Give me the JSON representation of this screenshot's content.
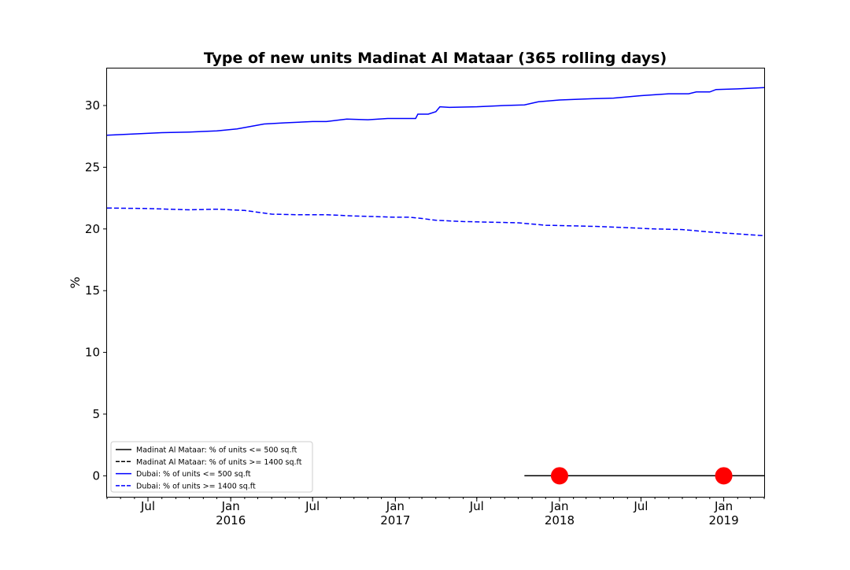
{
  "chart_data": {
    "type": "line",
    "title": "Type of new units Madinat Al Mataar (365 rolling days)",
    "xlabel": "",
    "ylabel": "%",
    "xlim": [
      "2015-04-01",
      "2019-04-01"
    ],
    "ylim": [
      -1.7,
      33.0
    ],
    "grid": false,
    "legend_position": "lower-left",
    "y_ticks": [
      0,
      5,
      10,
      15,
      20,
      25,
      30
    ],
    "y_tick_labels": [
      "0",
      "5",
      "10",
      "15",
      "20",
      "25",
      "30"
    ],
    "x_ticks": [
      {
        "date": "2015-07-01",
        "label": "Jul",
        "year": ""
      },
      {
        "date": "2016-01-01",
        "label": "Jan",
        "year": "2016"
      },
      {
        "date": "2016-07-01",
        "label": "Jul",
        "year": ""
      },
      {
        "date": "2017-01-01",
        "label": "Jan",
        "year": "2017"
      },
      {
        "date": "2017-07-01",
        "label": "Jul",
        "year": ""
      },
      {
        "date": "2018-01-01",
        "label": "Jan",
        "year": "2018"
      },
      {
        "date": "2018-07-01",
        "label": "Jul",
        "year": ""
      },
      {
        "date": "2019-01-01",
        "label": "Jan",
        "year": "2019"
      }
    ],
    "series": [
      {
        "name": "Madinat Al Mataar: % of units <= 500 sq.ft",
        "color": "#000000",
        "linestyle": "solid",
        "points": [
          [
            "2017-10-15",
            0
          ],
          [
            "2019-04-01",
            0
          ]
        ]
      },
      {
        "name": "Madinat Al Mataar: % of units >= 1400 sq.ft",
        "color": "#000000",
        "linestyle": "dashed",
        "points": [
          [
            "2017-10-15",
            0
          ],
          [
            "2019-04-01",
            0
          ]
        ]
      },
      {
        "name": "Dubai: % of units <= 500 sq.ft",
        "color": "#0000ff",
        "linestyle": "solid",
        "points": [
          [
            "2015-04-01",
            27.6
          ],
          [
            "2015-06-01",
            27.7
          ],
          [
            "2015-08-01",
            27.8
          ],
          [
            "2015-10-01",
            27.85
          ],
          [
            "2015-12-01",
            27.95
          ],
          [
            "2016-01-15",
            28.1
          ],
          [
            "2016-03-15",
            28.5
          ],
          [
            "2016-05-01",
            28.6
          ],
          [
            "2016-07-01",
            28.7
          ],
          [
            "2016-08-01",
            28.7
          ],
          [
            "2016-09-15",
            28.9
          ],
          [
            "2016-11-01",
            28.85
          ],
          [
            "2016-12-15",
            28.95
          ],
          [
            "2017-02-15",
            28.95
          ],
          [
            "2017-02-20",
            29.3
          ],
          [
            "2017-03-15",
            29.3
          ],
          [
            "2017-04-01",
            29.5
          ],
          [
            "2017-04-10",
            29.9
          ],
          [
            "2017-05-01",
            29.85
          ],
          [
            "2017-07-01",
            29.9
          ],
          [
            "2017-09-01",
            30.0
          ],
          [
            "2017-10-15",
            30.05
          ],
          [
            "2017-11-15",
            30.3
          ],
          [
            "2018-01-01",
            30.45
          ],
          [
            "2018-03-15",
            30.55
          ],
          [
            "2018-05-01",
            30.6
          ],
          [
            "2018-07-01",
            30.8
          ],
          [
            "2018-09-01",
            30.95
          ],
          [
            "2018-10-15",
            30.95
          ],
          [
            "2018-11-01",
            31.1
          ],
          [
            "2018-12-01",
            31.1
          ],
          [
            "2018-12-15",
            31.3
          ],
          [
            "2019-02-01",
            31.35
          ],
          [
            "2019-04-01",
            31.45
          ]
        ]
      },
      {
        "name": "Dubai: % of units >= 1400 sq.ft",
        "color": "#0000ff",
        "linestyle": "dashed",
        "points": [
          [
            "2015-04-01",
            21.7
          ],
          [
            "2015-07-01",
            21.65
          ],
          [
            "2015-10-01",
            21.55
          ],
          [
            "2015-12-01",
            21.6
          ],
          [
            "2016-02-01",
            21.5
          ],
          [
            "2016-04-01",
            21.2
          ],
          [
            "2016-06-01",
            21.15
          ],
          [
            "2016-08-01",
            21.15
          ],
          [
            "2016-10-01",
            21.05
          ],
          [
            "2017-01-01",
            20.95
          ],
          [
            "2017-02-01",
            20.95
          ],
          [
            "2017-03-01",
            20.85
          ],
          [
            "2017-04-01",
            20.7
          ],
          [
            "2017-06-01",
            20.6
          ],
          [
            "2017-08-01",
            20.55
          ],
          [
            "2017-10-01",
            20.5
          ],
          [
            "2017-12-01",
            20.3
          ],
          [
            "2018-02-01",
            20.25
          ],
          [
            "2018-04-01",
            20.2
          ],
          [
            "2018-06-01",
            20.1
          ],
          [
            "2018-08-01",
            20.0
          ],
          [
            "2018-10-01",
            19.95
          ],
          [
            "2018-12-01",
            19.75
          ],
          [
            "2019-02-01",
            19.6
          ],
          [
            "2019-04-01",
            19.45
          ]
        ]
      }
    ],
    "markers": [
      {
        "date": "2018-01-01",
        "value": 0,
        "color": "#ff0000"
      },
      {
        "date": "2019-01-01",
        "value": 0,
        "color": "#ff0000"
      }
    ]
  }
}
